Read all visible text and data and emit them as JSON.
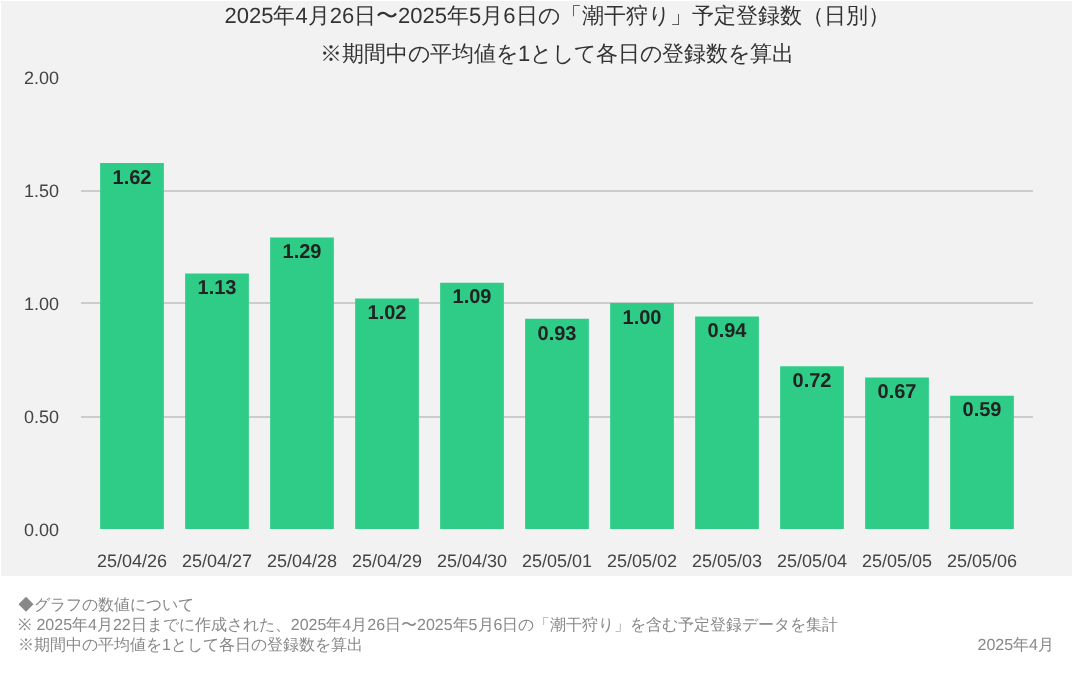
{
  "chart_data": {
    "type": "bar",
    "title": "2025年4月26日〜2025年5月6日の「潮干狩り」予定登録数（日別）",
    "subtitle": "※期間中の平均値を1として各日の登録数を算出",
    "categories": [
      "25/04/26",
      "25/04/27",
      "25/04/28",
      "25/04/29",
      "25/04/30",
      "25/05/01",
      "25/05/02",
      "25/05/03",
      "25/05/04",
      "25/05/05",
      "25/05/06"
    ],
    "values": [
      1.62,
      1.13,
      1.29,
      1.02,
      1.09,
      0.93,
      1.0,
      0.94,
      0.72,
      0.67,
      0.59
    ],
    "color": "#2ecc87",
    "value_labels": [
      "1.62",
      "1.13",
      "1.29",
      "1.02",
      "1.09",
      "0.93",
      "1.00",
      "0.94",
      "0.72",
      "0.67",
      "0.59"
    ],
    "ylim": [
      0,
      2.0
    ],
    "yticks": [
      {
        "value": 0,
        "label": "0.00"
      },
      {
        "value": 0.5,
        "label": "0.50"
      },
      {
        "value": 1,
        "label": "1.00"
      },
      {
        "value": 1.5,
        "label": "1.50"
      },
      {
        "value": 2,
        "label": "2.00"
      }
    ],
    "grid": "y",
    "annotations": [
      "◆グラフの数値について",
      "※ 2025年4月22日までに作成された、2025年4月26日〜2025年5月6日の「潮干狩り」を含む予定登録データを集計",
      "※期間中の平均値を1として各日の登録数を算出",
      "2025年4月"
    ]
  }
}
